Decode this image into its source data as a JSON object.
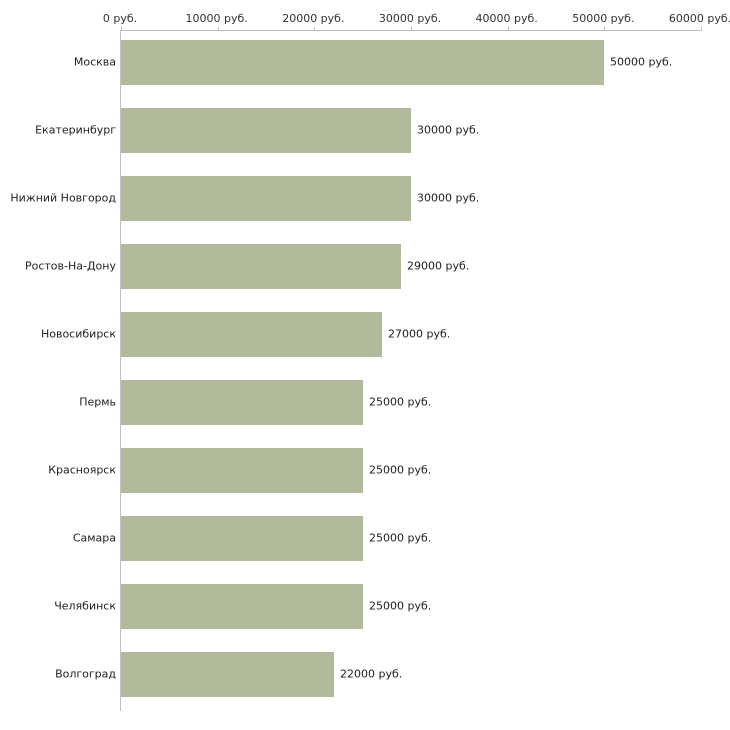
{
  "chart_data": {
    "type": "bar",
    "orientation": "horizontal",
    "title": "",
    "xlabel": "",
    "ylabel": "",
    "categories": [
      "Москва",
      "Екатеринбург",
      "Нижний Новгород",
      "Ростов-На-Дону",
      "Новосибирск",
      "Пермь",
      "Красноярск",
      "Самара",
      "Челябинск",
      "Волгоград"
    ],
    "values": [
      50000,
      30000,
      30000,
      29000,
      27000,
      25000,
      25000,
      25000,
      25000,
      22000
    ],
    "value_labels": [
      "50000 руб.",
      "30000 руб.",
      "30000 руб.",
      "29000 руб.",
      "27000 руб.",
      "25000 руб.",
      "25000 руб.",
      "25000 руб.",
      "25000 руб.",
      "22000 руб."
    ],
    "x_ticks": [
      0,
      10000,
      20000,
      30000,
      40000,
      50000,
      60000
    ],
    "x_tick_labels": [
      "0 руб.",
      "10000 руб.",
      "20000 руб.",
      "30000 руб.",
      "40000 руб.",
      "50000 руб.",
      "60000 руб."
    ],
    "xlim": [
      0,
      60000
    ],
    "grid": false,
    "legend": null,
    "bar_color": "#b1bb9c",
    "axis_color": "#c0c0c0",
    "text_color": "#222222"
  }
}
